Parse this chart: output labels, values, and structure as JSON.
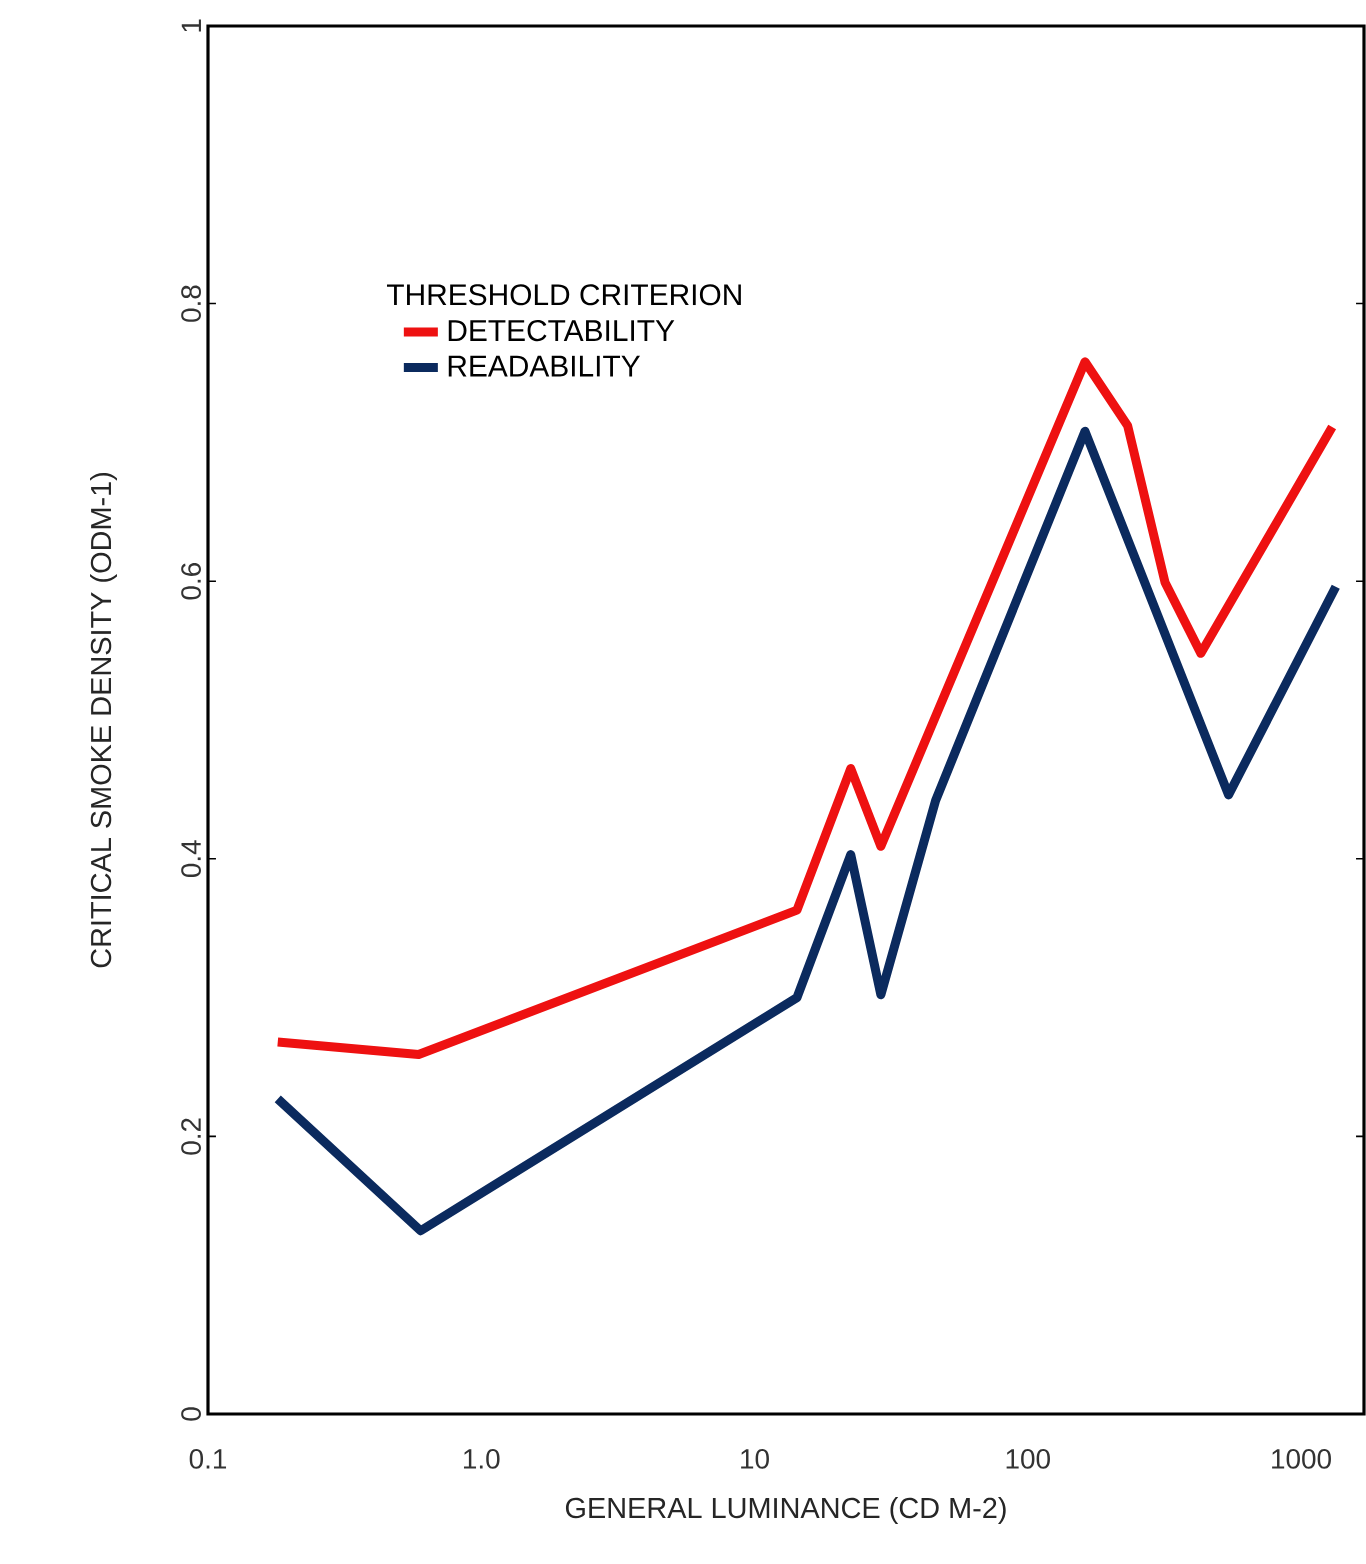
{
  "chart_data": {
    "type": "line",
    "xlabel": "GENERAL LUMINANCE (CD M-2)",
    "ylabel": "CRITICAL SMOKE DENSITY (ODM-1)",
    "legend_title": "THRESHOLD CRITERION",
    "log": "x",
    "xlim": [
      0.1,
      1700
    ],
    "ylim": [
      0,
      1
    ],
    "xticks": [
      0.1,
      {
        "value": 1,
        "label": "1.0"
      },
      10,
      100,
      1000
    ],
    "yticks": [
      0,
      0.2,
      0.4,
      0.6,
      0.8,
      1
    ],
    "legend": "top left",
    "grid": false,
    "marker": "none",
    "line_style": "solid",
    "series": [
      {
        "name": "DETECTABILITY",
        "color": "#ee1111",
        "x": [
          0.18,
          0.59,
          14.3,
          22.5,
          29,
          43,
          162,
          232,
          318,
          430,
          1300
        ],
        "values": [
          0.268,
          0.259,
          0.363,
          0.465,
          0.409,
          0.489,
          0.758,
          0.712,
          0.599,
          0.548,
          0.711
        ]
      },
      {
        "name": "READABILITY",
        "color": "#0b2a5e",
        "x": [
          0.18,
          0.6,
          14.3,
          22.5,
          29,
          46,
          162,
          543,
          1340
        ],
        "values": [
          0.227,
          0.132,
          0.3,
          0.403,
          0.302,
          0.442,
          0.708,
          0.446,
          0.596
        ]
      }
    ]
  }
}
